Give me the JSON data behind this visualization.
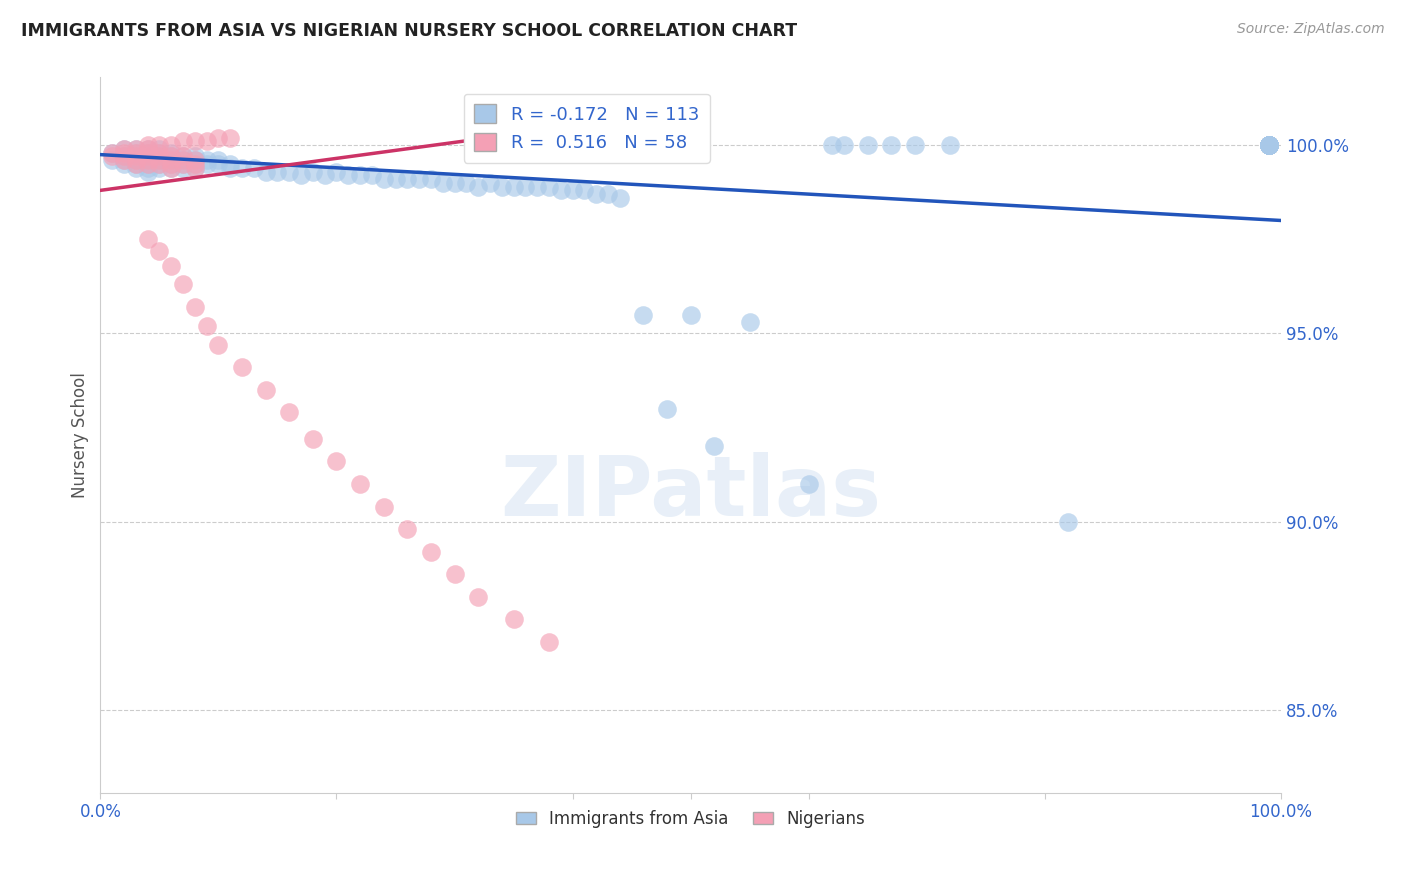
{
  "title": "IMMIGRANTS FROM ASIA VS NIGERIAN NURSERY SCHOOL CORRELATION CHART",
  "source": "Source: ZipAtlas.com",
  "ylabel": "Nursery School",
  "watermark": "ZIPatlas",
  "legend": {
    "blue_R": "-0.172",
    "blue_N": "113",
    "pink_R": "0.516",
    "pink_N": "58"
  },
  "y_ticks": [
    0.85,
    0.9,
    0.95,
    1.0
  ],
  "y_tick_labels": [
    "85.0%",
    "90.0%",
    "95.0%",
    "100.0%"
  ],
  "x_lim": [
    0.0,
    1.0
  ],
  "y_lim": [
    0.828,
    1.018
  ],
  "blue_color": "#a8c8e8",
  "pink_color": "#f4a0b5",
  "blue_line_color": "#2255bb",
  "pink_line_color": "#cc3366",
  "title_color": "#222222",
  "source_color": "#999999",
  "tick_label_color": "#3366cc",
  "grid_color": "#cccccc",
  "blue_line": {
    "x0": 0.0,
    "y0": 0.9975,
    "x1": 1.0,
    "y1": 0.98
  },
  "pink_line": {
    "x0": 0.0,
    "y0": 0.988,
    "x1": 0.4,
    "y1": 1.005
  },
  "blue_scatter_x": [
    0.01,
    0.01,
    0.02,
    0.02,
    0.02,
    0.02,
    0.03,
    0.03,
    0.03,
    0.03,
    0.03,
    0.03,
    0.04,
    0.04,
    0.04,
    0.04,
    0.04,
    0.04,
    0.04,
    0.05,
    0.05,
    0.05,
    0.05,
    0.05,
    0.05,
    0.06,
    0.06,
    0.06,
    0.06,
    0.06,
    0.07,
    0.07,
    0.07,
    0.07,
    0.08,
    0.08,
    0.08,
    0.08,
    0.09,
    0.09,
    0.1,
    0.1,
    0.11,
    0.11,
    0.12,
    0.13,
    0.14,
    0.15,
    0.16,
    0.17,
    0.18,
    0.19,
    0.2,
    0.21,
    0.22,
    0.23,
    0.24,
    0.25,
    0.26,
    0.27,
    0.28,
    0.29,
    0.3,
    0.31,
    0.32,
    0.33,
    0.34,
    0.35,
    0.36,
    0.37,
    0.38,
    0.39,
    0.4,
    0.41,
    0.42,
    0.43,
    0.44,
    0.46,
    0.48,
    0.5,
    0.52,
    0.55,
    0.6,
    0.62,
    0.63,
    0.65,
    0.67,
    0.69,
    0.72,
    0.82,
    0.99,
    0.99,
    0.99,
    0.99,
    0.99,
    0.99,
    0.99,
    0.99,
    0.99,
    0.99,
    0.99,
    0.99,
    0.99,
    0.99,
    0.99,
    0.99,
    0.99,
    0.99,
    0.99,
    0.99,
    0.99,
    0.99,
    0.99
  ],
  "blue_scatter_y": [
    0.998,
    0.996,
    0.999,
    0.997,
    0.996,
    0.995,
    0.999,
    0.998,
    0.997,
    0.996,
    0.995,
    0.994,
    0.999,
    0.998,
    0.997,
    0.996,
    0.995,
    0.994,
    0.993,
    0.999,
    0.998,
    0.997,
    0.996,
    0.995,
    0.994,
    0.998,
    0.997,
    0.996,
    0.995,
    0.994,
    0.997,
    0.996,
    0.995,
    0.994,
    0.997,
    0.996,
    0.995,
    0.994,
    0.996,
    0.995,
    0.996,
    0.995,
    0.995,
    0.994,
    0.994,
    0.994,
    0.993,
    0.993,
    0.993,
    0.992,
    0.993,
    0.992,
    0.993,
    0.992,
    0.992,
    0.992,
    0.991,
    0.991,
    0.991,
    0.991,
    0.991,
    0.99,
    0.99,
    0.99,
    0.989,
    0.99,
    0.989,
    0.989,
    0.989,
    0.989,
    0.989,
    0.988,
    0.988,
    0.988,
    0.987,
    0.987,
    0.986,
    0.955,
    0.93,
    0.955,
    0.92,
    0.953,
    0.91,
    1.0,
    1.0,
    1.0,
    1.0,
    1.0,
    1.0,
    0.9,
    1.0,
    1.0,
    1.0,
    1.0,
    1.0,
    1.0,
    1.0,
    1.0,
    1.0,
    1.0,
    1.0,
    1.0,
    1.0,
    1.0,
    1.0,
    1.0,
    1.0,
    1.0,
    1.0,
    1.0,
    1.0,
    1.0,
    1.0
  ],
  "pink_scatter_x": [
    0.01,
    0.01,
    0.02,
    0.02,
    0.02,
    0.02,
    0.03,
    0.03,
    0.03,
    0.03,
    0.03,
    0.04,
    0.04,
    0.04,
    0.04,
    0.04,
    0.05,
    0.05,
    0.05,
    0.05,
    0.06,
    0.06,
    0.06,
    0.06,
    0.07,
    0.07,
    0.07,
    0.08,
    0.08,
    0.08,
    0.04,
    0.05,
    0.06,
    0.07,
    0.08,
    0.09,
    0.1,
    0.12,
    0.14,
    0.16,
    0.18,
    0.2,
    0.22,
    0.24,
    0.26,
    0.28,
    0.3,
    0.32,
    0.35,
    0.38,
    0.04,
    0.05,
    0.06,
    0.07,
    0.08,
    0.09,
    0.1,
    0.11
  ],
  "pink_scatter_y": [
    0.998,
    0.997,
    0.999,
    0.998,
    0.997,
    0.996,
    0.999,
    0.998,
    0.997,
    0.996,
    0.995,
    0.999,
    0.998,
    0.997,
    0.996,
    0.995,
    0.998,
    0.997,
    0.996,
    0.995,
    0.997,
    0.996,
    0.995,
    0.994,
    0.997,
    0.996,
    0.995,
    0.996,
    0.995,
    0.994,
    0.975,
    0.972,
    0.968,
    0.963,
    0.957,
    0.952,
    0.947,
    0.941,
    0.935,
    0.929,
    0.922,
    0.916,
    0.91,
    0.904,
    0.898,
    0.892,
    0.886,
    0.88,
    0.874,
    0.868,
    1.0,
    1.0,
    1.0,
    1.001,
    1.001,
    1.001,
    1.002,
    1.002
  ]
}
